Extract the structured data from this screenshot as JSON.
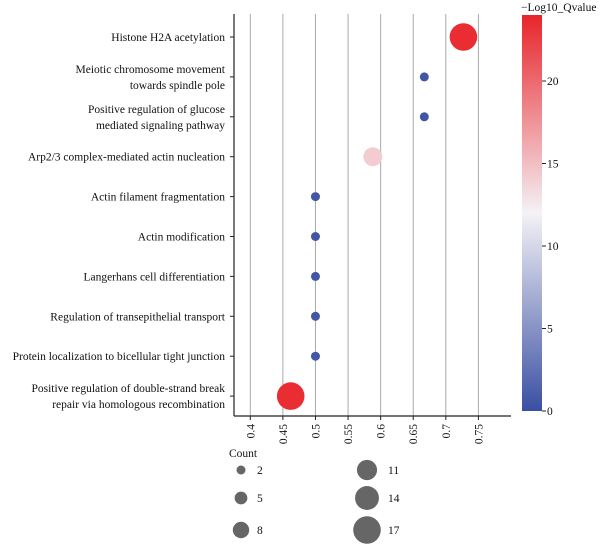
{
  "chart_data": {
    "type": "scatter",
    "terms": [
      {
        "label": [
          "Histone H2A acetylation"
        ],
        "x": 0.727,
        "count": 17,
        "qvalue": 23.5
      },
      {
        "label": [
          "Meiotic chromosome movement",
          "towards spindle pole"
        ],
        "x": 0.667,
        "count": 2,
        "qvalue": 0.5
      },
      {
        "label": [
          "Positive regulation of glucose",
          "mediated signaling pathway"
        ],
        "x": 0.667,
        "count": 2,
        "qvalue": 0.5
      },
      {
        "label": [
          "Arp2/3 complex-mediated actin nucleation"
        ],
        "x": 0.588,
        "count": 10,
        "qvalue": 14.2
      },
      {
        "label": [
          "Actin filament fragmentation"
        ],
        "x": 0.5,
        "count": 2,
        "qvalue": 0.5
      },
      {
        "label": [
          "Actin modification"
        ],
        "x": 0.5,
        "count": 2,
        "qvalue": 0.5
      },
      {
        "label": [
          "Langerhans cell differentiation"
        ],
        "x": 0.5,
        "count": 2,
        "qvalue": 0.5
      },
      {
        "label": [
          "Regulation of transepithelial transport"
        ],
        "x": 0.5,
        "count": 2,
        "qvalue": 0.5
      },
      {
        "label": [
          "Protein localization to bicellular tight junction"
        ],
        "x": 0.5,
        "count": 2,
        "qvalue": 0.5
      },
      {
        "label": [
          "Positive regulation of double-strand break",
          "repair via homologous recombination"
        ],
        "x": 0.462,
        "count": 17,
        "qvalue": 23.5
      }
    ],
    "x_ticks": [
      "0.4",
      "0.45",
      "0.5",
      "0.55",
      "0.6",
      "0.65",
      "0.7",
      "0.75"
    ],
    "x_tick_values": [
      0.4,
      0.45,
      0.5,
      0.55,
      0.6,
      0.65,
      0.7,
      0.75
    ],
    "xlim": [
      0.375,
      0.8
    ],
    "grid": true,
    "colorbar": {
      "title": "−Log10_Qvalue",
      "range": [
        0,
        24
      ],
      "ticks": [
        "0",
        "5",
        "10",
        "15",
        "20"
      ],
      "tick_values": [
        0,
        5,
        10,
        15,
        20
      ],
      "low_color": "#3a4fa3",
      "mid_color": "#f4f2f6",
      "high_color": "#e8242a",
      "legend_position": "right"
    },
    "size_legend": {
      "title": "Count",
      "values": [
        2,
        5,
        8,
        11,
        14,
        17
      ],
      "labels": [
        "2",
        "5",
        "8",
        "11",
        "14",
        "17"
      ],
      "legend_position": "bottom"
    },
    "dot_gray": "#666666"
  }
}
